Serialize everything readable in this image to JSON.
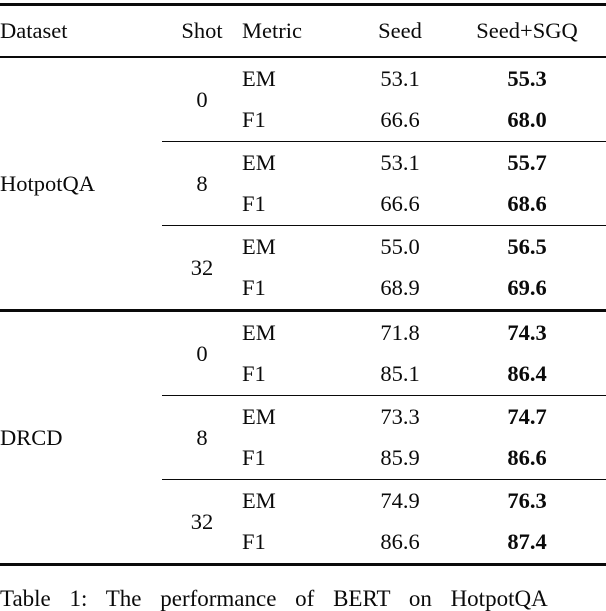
{
  "table": {
    "columns": {
      "dataset": "Dataset",
      "shot": "Shot",
      "metric": "Metric",
      "seed": "Seed",
      "seed_sgq": "Seed+SGQ"
    },
    "groups": [
      {
        "dataset": "HotpotQA",
        "blocks": [
          {
            "shot": "0",
            "rows": [
              {
                "metric": "EM",
                "seed": "53.1",
                "seed_sgq": "55.3"
              },
              {
                "metric": "F1",
                "seed": "66.6",
                "seed_sgq": "68.0"
              }
            ]
          },
          {
            "shot": "8",
            "rows": [
              {
                "metric": "EM",
                "seed": "53.1",
                "seed_sgq": "55.7"
              },
              {
                "metric": "F1",
                "seed": "66.6",
                "seed_sgq": "68.6"
              }
            ]
          },
          {
            "shot": "32",
            "rows": [
              {
                "metric": "EM",
                "seed": "55.0",
                "seed_sgq": "56.5"
              },
              {
                "metric": "F1",
                "seed": "68.9",
                "seed_sgq": "69.6"
              }
            ]
          }
        ]
      },
      {
        "dataset": "DRCD",
        "blocks": [
          {
            "shot": "0",
            "rows": [
              {
                "metric": "EM",
                "seed": "71.8",
                "seed_sgq": "74.3"
              },
              {
                "metric": "F1",
                "seed": "85.1",
                "seed_sgq": "86.4"
              }
            ]
          },
          {
            "shot": "8",
            "rows": [
              {
                "metric": "EM",
                "seed": "73.3",
                "seed_sgq": "74.7"
              },
              {
                "metric": "F1",
                "seed": "85.9",
                "seed_sgq": "86.6"
              }
            ]
          },
          {
            "shot": "32",
            "rows": [
              {
                "metric": "EM",
                "seed": "74.9",
                "seed_sgq": "76.3"
              },
              {
                "metric": "F1",
                "seed": "86.6",
                "seed_sgq": "87.4"
              }
            ]
          }
        ]
      }
    ]
  },
  "caption": "Table 1: The performance of BERT on HotpotQA"
}
